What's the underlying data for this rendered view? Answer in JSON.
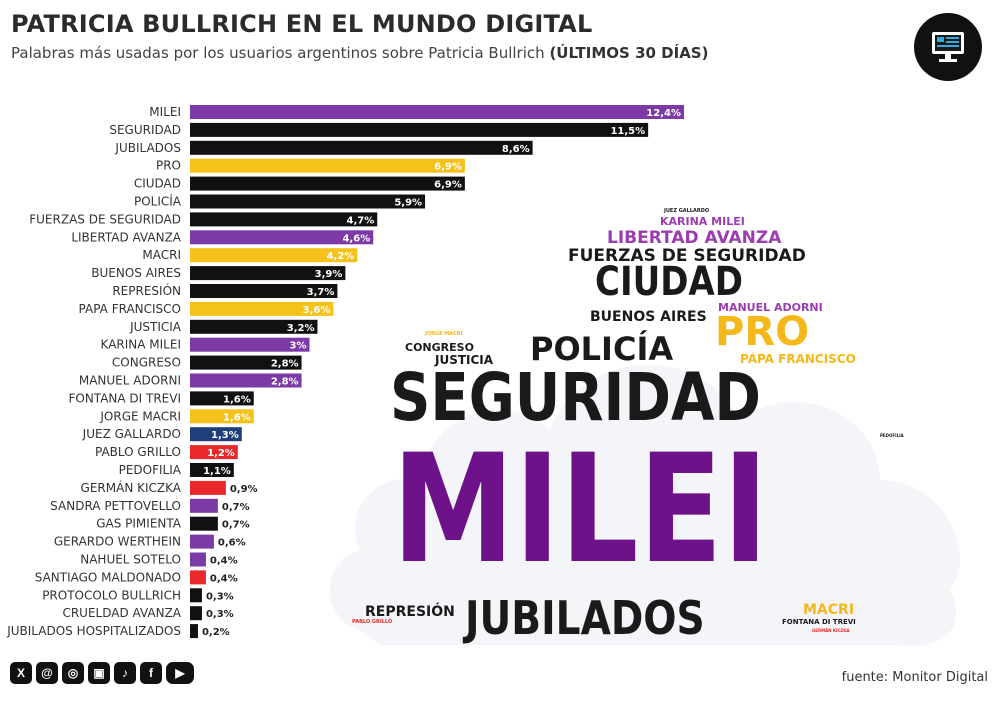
{
  "header": {
    "title": "PATRICIA BULLRICH EN EL MUNDO DIGITAL",
    "subtitle_main": "Palabras más usadas por los usuarios argentinos sobre Patricia Bullrich",
    "subtitle_bold": "(ÚLTIMOS 30 DÍAS)"
  },
  "logo": {
    "icon": "monitor-icon"
  },
  "chart_data": {
    "type": "bar",
    "orientation": "horizontal",
    "categories": [
      "MILEI",
      "SEGURIDAD",
      "JUBILADOS",
      "PRO",
      "CIUDAD",
      "POLICÍA",
      "FUERZAS DE SEGURIDAD",
      "LIBERTAD AVANZA",
      "MACRI",
      "BUENOS AIRES",
      "REPRESIÓN",
      "PAPA FRANCISCO",
      "JUSTICIA",
      "KARINA MILEI",
      "CONGRESO",
      "MANUEL ADORNI",
      "FONTANA DI TREVI",
      "JORGE MACRI",
      "JUEZ GALLARDO",
      "PABLO GRILLO",
      "PEDOFILIA",
      "GERMÁN KICZKA",
      "SANDRA PETTOVELLO",
      "GAS PIMIENTA",
      "GERARDO WERTHEIN",
      "NAHUEL SOTELO",
      "SANTIAGO MALDONADO",
      "PROTOCOLO BULLRICH",
      "CRUELDAD AVANZA",
      "JUBILADOS HOSPITALIZADOS"
    ],
    "values": [
      12.4,
      11.5,
      8.6,
      6.9,
      6.9,
      5.9,
      4.7,
      4.6,
      4.2,
      3.9,
      3.7,
      3.6,
      3.2,
      3.0,
      2.8,
      2.8,
      1.6,
      1.6,
      1.3,
      1.2,
      1.1,
      0.9,
      0.7,
      0.7,
      0.6,
      0.4,
      0.4,
      0.3,
      0.3,
      0.2
    ],
    "value_labels": [
      "12,4%",
      "11,5%",
      "8,6%",
      "6,9%",
      "6,9%",
      "5,9%",
      "4,7%",
      "4,6%",
      "4,2%",
      "3,9%",
      "3,7%",
      "3,6%",
      "3,2%",
      "3%",
      "2,8%",
      "2,8%",
      "1,6%",
      "1,6%",
      "1,3%",
      "1,2%",
      "1,1%",
      "0,9%",
      "0,7%",
      "0,7%",
      "0,6%",
      "0,4%",
      "0,4%",
      "0,3%",
      "0,3%",
      "0,2%"
    ],
    "colors": [
      "#7b3aa5",
      "#111111",
      "#111111",
      "#f5c21b",
      "#111111",
      "#111111",
      "#111111",
      "#7b3aa5",
      "#f5c21b",
      "#111111",
      "#111111",
      "#f5c21b",
      "#111111",
      "#7b3aa5",
      "#111111",
      "#7b3aa5",
      "#111111",
      "#f5c21b",
      "#1f3f7a",
      "#e8282b",
      "#111111",
      "#e8282b",
      "#7b3aa5",
      "#111111",
      "#7b3aa5",
      "#7b3aa5",
      "#e8282b",
      "#111111",
      "#111111",
      "#111111"
    ],
    "xlim": [
      0,
      12.4
    ],
    "grid": false,
    "legend": "none"
  },
  "wordcloud": [
    {
      "text": "MILEI",
      "color": "#6e1289",
      "size": 150
    },
    {
      "text": "SEGURIDAD",
      "color": "#1a1a1a",
      "size": 66
    },
    {
      "text": "JUBILADOS",
      "color": "#1a1a1a",
      "size": 46
    },
    {
      "text": "CIUDAD",
      "color": "#1a1a1a",
      "size": 40
    },
    {
      "text": "PRO",
      "color": "#f5b81b",
      "size": 40
    },
    {
      "text": "POLICÍA",
      "color": "#1a1a1a",
      "size": 32
    },
    {
      "text": "FUERZAS DE SEGURIDAD",
      "color": "#1a1a1a",
      "size": 17
    },
    {
      "text": "LIBERTAD AVANZA",
      "color": "#9b3db0",
      "size": 17
    },
    {
      "text": "BUENOS AIRES",
      "color": "#1a1a1a",
      "size": 14
    },
    {
      "text": "MANUEL ADORNI",
      "color": "#9b3db0",
      "size": 11
    },
    {
      "text": "PAPA FRANCISCO",
      "color": "#f5b81b",
      "size": 12
    },
    {
      "text": "KARINA MILEI",
      "color": "#9b3db0",
      "size": 11
    },
    {
      "text": "CONGRESO",
      "color": "#1a1a1a",
      "size": 11
    },
    {
      "text": "JUSTICIA",
      "color": "#1a1a1a",
      "size": 12
    },
    {
      "text": "REPRESIÓN",
      "color": "#1a1a1a",
      "size": 14
    },
    {
      "text": "MACRI",
      "color": "#f5b81b",
      "size": 14
    },
    {
      "text": "FONTANA DI TREVI",
      "color": "#1a1a1a",
      "size": 7
    },
    {
      "text": "JUEZ GALLARDO",
      "color": "#1a1a1a",
      "size": 5
    },
    {
      "text": "JORGE MACRI",
      "color": "#f5b81b",
      "size": 5
    },
    {
      "text": "PABLO GRILLO",
      "color": "#e8282b",
      "size": 5
    },
    {
      "text": "PEDOFILIA",
      "color": "#1a1a1a",
      "size": 4
    },
    {
      "text": "GERMÁN KICZKA",
      "color": "#e8282b",
      "size": 4
    }
  ],
  "footer": {
    "social_icons": [
      "x-icon",
      "threads-icon",
      "instagram-icon",
      "news-icon",
      "tiktok-icon",
      "facebook-icon",
      "youtube-icon"
    ],
    "social_glyphs": [
      "X",
      "@",
      "◎",
      "▣",
      "♪",
      "f",
      "▶"
    ],
    "source": "fuente: Monitor Digital"
  }
}
